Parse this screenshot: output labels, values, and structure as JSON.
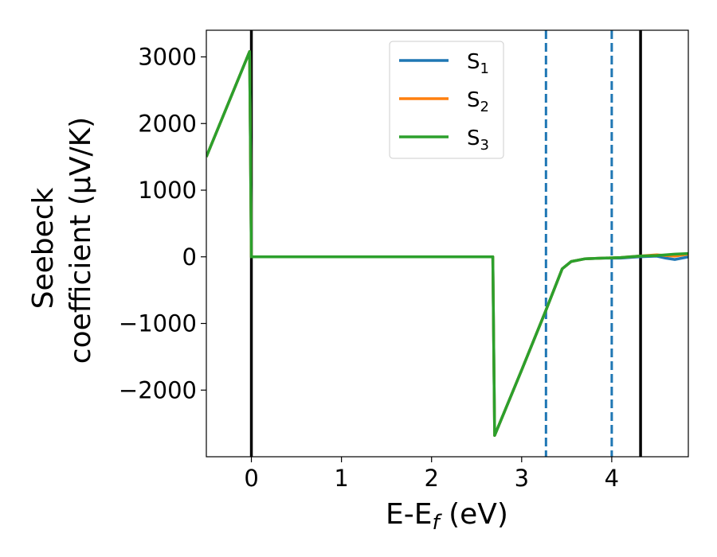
{
  "chart_data": {
    "type": "line",
    "xlabel": {
      "base": "E-E",
      "sub": "f",
      "suffix": " (eV)"
    },
    "ylabel": {
      "line1": "Seebeck",
      "line2": "coefficient  (μV/K)"
    },
    "xlim": [
      -0.5,
      4.85
    ],
    "ylim": [
      -3000,
      3400
    ],
    "xticks": [
      0,
      1,
      2,
      3,
      4
    ],
    "xtick_labels": [
      "0",
      "1",
      "2",
      "3",
      "4"
    ],
    "yticks": [
      3000,
      2000,
      1000,
      0,
      -1000,
      -2000
    ],
    "ytick_labels": [
      "3000",
      "2000",
      "1000",
      "0",
      "−1000",
      "−2000"
    ],
    "grid": false,
    "legend_position": "upper center",
    "vlines": [
      {
        "x": 0.0,
        "style": "solid",
        "color": "#000000"
      },
      {
        "x": 4.32,
        "style": "solid",
        "color": "#000000"
      },
      {
        "x": 3.27,
        "style": "dashed",
        "color": "#1f77b4"
      },
      {
        "x": 4.0,
        "style": "dashed",
        "color": "#1f77b4"
      }
    ],
    "series": [
      {
        "name": "S",
        "sub": "1",
        "color": "#1f77b4",
        "x": [
          -0.5,
          -0.02,
          -0.01,
          0.0,
          0.02,
          2.68,
          2.69,
          2.7,
          3.0,
          3.27,
          3.45,
          3.55,
          3.7,
          3.9,
          4.1,
          4.3,
          4.5,
          4.6,
          4.7,
          4.85
        ],
        "y": [
          1500,
          3080,
          1600,
          0,
          0,
          0,
          -1300,
          -2680,
          -1700,
          -800,
          -180,
          -70,
          -30,
          -20,
          -20,
          0,
          10,
          -20,
          -40,
          0
        ]
      },
      {
        "name": "S",
        "sub": "2",
        "color": "#ff7f0e",
        "x": [
          -0.5,
          -0.02,
          -0.01,
          0.0,
          0.02,
          2.68,
          2.69,
          2.7,
          3.0,
          3.27,
          3.45,
          3.55,
          3.7,
          3.9,
          4.1,
          4.3,
          4.5,
          4.6,
          4.7,
          4.85
        ],
        "y": [
          1500,
          3080,
          1600,
          0,
          0,
          0,
          -1300,
          -2680,
          -1700,
          -800,
          -180,
          -70,
          -30,
          -20,
          -10,
          10,
          30,
          20,
          10,
          40
        ]
      },
      {
        "name": "S",
        "sub": "3",
        "color": "#2ca02c",
        "x": [
          -0.5,
          -0.02,
          -0.01,
          0.0,
          0.02,
          2.68,
          2.69,
          2.7,
          3.0,
          3.27,
          3.45,
          3.55,
          3.7,
          3.9,
          4.1,
          4.3,
          4.5,
          4.6,
          4.7,
          4.85
        ],
        "y": [
          1500,
          3080,
          1600,
          0,
          0,
          0,
          -1300,
          -2680,
          -1700,
          -800,
          -180,
          -70,
          -30,
          -20,
          -10,
          10,
          20,
          30,
          40,
          50
        ]
      }
    ]
  }
}
